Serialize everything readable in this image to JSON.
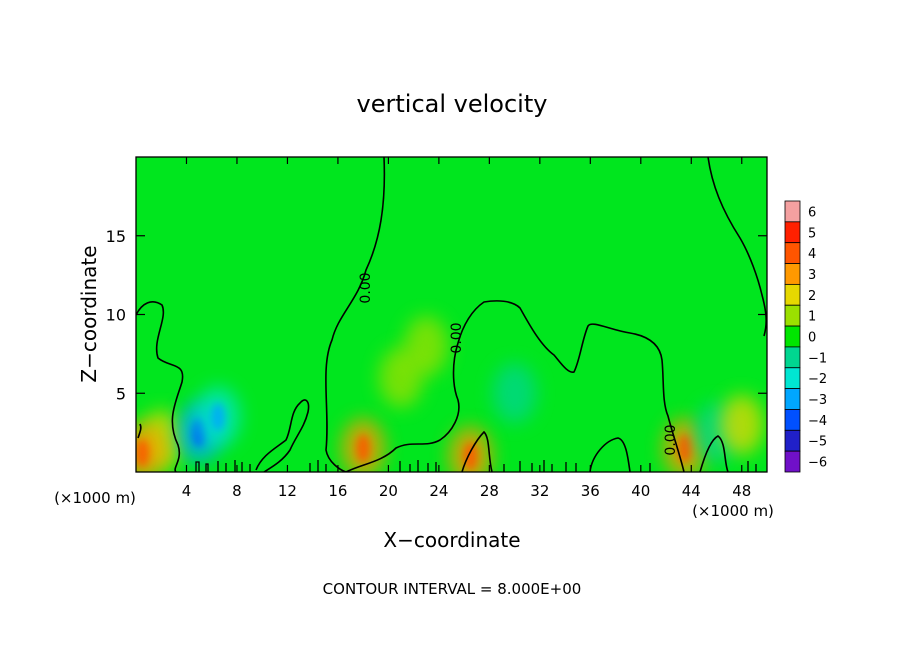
{
  "chart_data": {
    "type": "heatmap",
    "title": "vertical velocity",
    "xlabel": "X−coordinate",
    "ylabel": "Z−coordinate",
    "x_unit": "(×1000 m)",
    "y_unit": "(×1000 m)",
    "xlim": [
      0,
      50
    ],
    "ylim": [
      0,
      20
    ],
    "x_ticks": [
      4,
      8,
      12,
      16,
      20,
      24,
      28,
      32,
      36,
      40,
      44,
      48
    ],
    "y_ticks": [
      5,
      10,
      15
    ],
    "contour_interval_text": "CONTOUR INTERVAL = 8.000E+00",
    "contour_label": "0.00",
    "colorbar": {
      "levels": [
        6,
        5,
        4,
        3,
        2,
        1,
        0,
        -1,
        -2,
        -3,
        -4,
        -5,
        -6
      ],
      "colors": [
        "#f4a0a0",
        "#ff2000",
        "#ff5500",
        "#ff9900",
        "#e6d800",
        "#9be000",
        "#00e600",
        "#00d690",
        "#00e6d2",
        "#00a6ff",
        "#0050ff",
        "#2020c8",
        "#7010c8"
      ]
    },
    "background_color": "#00e61e",
    "features": [
      {
        "x": 2,
        "z": 2.0,
        "value": 1.5
      },
      {
        "x": 0.5,
        "z": 1.2,
        "value": 3
      },
      {
        "x": 5,
        "z": 2.5,
        "value": -3.5
      },
      {
        "x": 6.5,
        "z": 3.5,
        "value": -2
      },
      {
        "x": 18,
        "z": 1.5,
        "value": 2.5
      },
      {
        "x": 21,
        "z": 6,
        "value": 0.8
      },
      {
        "x": 23,
        "z": 8,
        "value": 0.8
      },
      {
        "x": 26.5,
        "z": 1.0,
        "value": 2.5
      },
      {
        "x": 30,
        "z": 5,
        "value": -0.8
      },
      {
        "x": 43.5,
        "z": 1.5,
        "value": 3
      },
      {
        "x": 46,
        "z": 2.5,
        "value": -1.5
      },
      {
        "x": 48,
        "z": 3.0,
        "value": 1.5
      }
    ]
  }
}
